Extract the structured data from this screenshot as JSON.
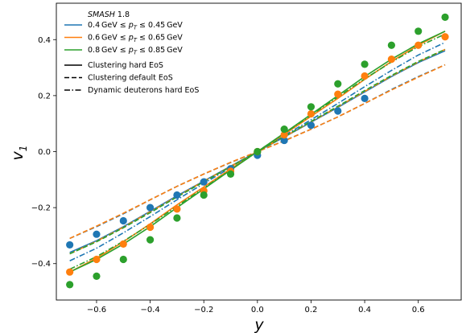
{
  "chart_data": {
    "type": "line",
    "xlabel": "y",
    "ylabel_main": "v",
    "ylabel_sub": "1",
    "xlim": [
      -0.75,
      0.76
    ],
    "ylim": [
      -0.53,
      0.53
    ],
    "x_ticks": [
      -0.6,
      -0.4,
      -0.2,
      0.0,
      0.2,
      0.4,
      0.6
    ],
    "x_tick_labels": [
      "−0.6",
      "−0.4",
      "−0.2",
      "0.0",
      "0.2",
      "0.4",
      "0.6"
    ],
    "y_ticks": [
      -0.4,
      -0.2,
      0.0,
      0.2,
      0.4
    ],
    "y_tick_labels": [
      "−0.4",
      "−0.2",
      "0.0",
      "0.2",
      "0.4"
    ],
    "legend_position": "top-left",
    "legend": {
      "title": "SMASH",
      "title_version": "1.8",
      "series_labels": [
        "0.4 GeV ≤ p_T ≤ 0.45 GeV",
        "0.6 GeV ≤ p_T ≤ 0.65 GeV",
        "0.8 GeV ≤ p_T ≤ 0.85 GeV"
      ],
      "series_label_parts": [
        {
          "pre": "0.4 GeV ≤ ",
          "var": "p",
          "sub": "T",
          "post": " ≤ 0.45 GeV"
        },
        {
          "pre": "0.6 GeV ≤ ",
          "var": "p",
          "sub": "T",
          "post": " ≤ 0.65 GeV"
        },
        {
          "pre": "0.8 GeV ≤ ",
          "var": "p",
          "sub": "T",
          "post": " ≤ 0.85 GeV"
        }
      ],
      "style_labels": [
        "Clustering hard EoS",
        "Clustering default EoS",
        "Dynamic deuterons hard EoS"
      ]
    },
    "colors": [
      "#1f77b4",
      "#ff7f0e",
      "#2ca02c"
    ],
    "line_styles": [
      "solid",
      "dashed",
      "dashdot"
    ],
    "series": [
      {
        "name": "0.4 GeV ≤ p_T ≤ 0.45 GeV",
        "color": "#1f77b4",
        "points": {
          "x": [
            -0.7,
            -0.6,
            -0.5,
            -0.4,
            -0.3,
            -0.2,
            -0.1,
            0.0,
            0.1,
            0.2,
            0.3,
            0.4
          ],
          "y": [
            -0.333,
            -0.295,
            -0.247,
            -0.2,
            -0.155,
            -0.108,
            -0.061,
            -0.013,
            0.04,
            0.094,
            0.145,
            0.19
          ]
        },
        "curves": {
          "x": [
            -0.7,
            -0.6,
            -0.5,
            -0.4,
            -0.3,
            -0.2,
            -0.1,
            0.0,
            0.1,
            0.2,
            0.3,
            0.4,
            0.5,
            0.6,
            0.7
          ],
          "solid": [
            -0.36,
            -0.318,
            -0.268,
            -0.213,
            -0.158,
            -0.105,
            -0.052,
            0.0,
            0.052,
            0.105,
            0.158,
            0.213,
            0.268,
            0.318,
            0.36
          ],
          "dashed": [
            -0.31,
            -0.268,
            -0.222,
            -0.172,
            -0.124,
            -0.08,
            -0.039,
            0.0,
            0.039,
            0.08,
            0.124,
            0.172,
            0.222,
            0.268,
            0.31
          ],
          "dashdot": [
            -0.39,
            -0.345,
            -0.29,
            -0.232,
            -0.172,
            -0.114,
            -0.057,
            0.0,
            0.057,
            0.114,
            0.172,
            0.232,
            0.29,
            0.345,
            0.39
          ]
        }
      },
      {
        "name": "0.6 GeV ≤ p_T ≤ 0.65 GeV",
        "color": "#ff7f0e",
        "points": {
          "x": [
            -0.7,
            -0.6,
            -0.5,
            -0.4,
            -0.3,
            -0.2,
            -0.1,
            0.0,
            0.1,
            0.2,
            0.3,
            0.4,
            0.5,
            0.6,
            0.7
          ],
          "y": [
            -0.43,
            -0.385,
            -0.33,
            -0.27,
            -0.205,
            -0.14,
            -0.07,
            0.0,
            0.06,
            0.135,
            0.205,
            0.27,
            0.33,
            0.38,
            0.41
          ]
        },
        "curves": {
          "x": [
            -0.7,
            -0.6,
            -0.5,
            -0.4,
            -0.3,
            -0.2,
            -0.1,
            0.0,
            0.1,
            0.2,
            0.3,
            0.4,
            0.5,
            0.6,
            0.7
          ],
          "solid": [
            -0.43,
            -0.38,
            -0.322,
            -0.258,
            -0.19,
            -0.126,
            -0.062,
            0.0,
            0.062,
            0.126,
            0.19,
            0.258,
            0.322,
            0.38,
            0.43
          ],
          "dashed": [
            -0.31,
            -0.266,
            -0.22,
            -0.172,
            -0.124,
            -0.08,
            -0.038,
            0.0,
            0.038,
            0.08,
            0.124,
            0.172,
            0.22,
            0.266,
            0.31
          ],
          "dashdot": [
            -0.365,
            -0.32,
            -0.27,
            -0.215,
            -0.16,
            -0.106,
            -0.053,
            0.0,
            0.053,
            0.106,
            0.16,
            0.215,
            0.27,
            0.32,
            0.365
          ]
        }
      },
      {
        "name": "0.8 GeV ≤ p_T ≤ 0.85 GeV",
        "color": "#2ca02c",
        "points": {
          "x": [
            -0.7,
            -0.6,
            -0.5,
            -0.4,
            -0.3,
            -0.2,
            -0.1,
            0.0,
            0.1,
            0.2,
            0.3,
            0.4,
            0.5,
            0.6,
            0.7
          ],
          "y": [
            -0.475,
            -0.445,
            -0.385,
            -0.315,
            -0.237,
            -0.155,
            -0.08,
            0.0,
            0.08,
            0.16,
            0.242,
            0.312,
            0.38,
            0.43,
            0.48
          ]
        },
        "curves": {
          "x": [
            -0.7,
            -0.6,
            -0.5,
            -0.4,
            -0.3,
            -0.2,
            -0.1,
            0.0,
            0.1,
            0.2,
            0.3,
            0.4,
            0.5,
            0.6,
            0.7
          ],
          "solid": [
            -0.43,
            -0.385,
            -0.33,
            -0.268,
            -0.2,
            -0.133,
            -0.066,
            0.0,
            0.066,
            0.133,
            0.2,
            0.268,
            0.33,
            0.385,
            0.43
          ],
          "dashed": [
            -0.365,
            -0.322,
            -0.272,
            -0.218,
            -0.162,
            -0.108,
            -0.054,
            0.0,
            0.054,
            0.108,
            0.162,
            0.218,
            0.272,
            0.322,
            0.365
          ],
          "dashdot": [
            -0.42,
            -0.375,
            -0.32,
            -0.26,
            -0.195,
            -0.13,
            -0.065,
            0.0,
            0.065,
            0.13,
            0.195,
            0.26,
            0.32,
            0.375,
            0.42
          ]
        }
      }
    ]
  }
}
